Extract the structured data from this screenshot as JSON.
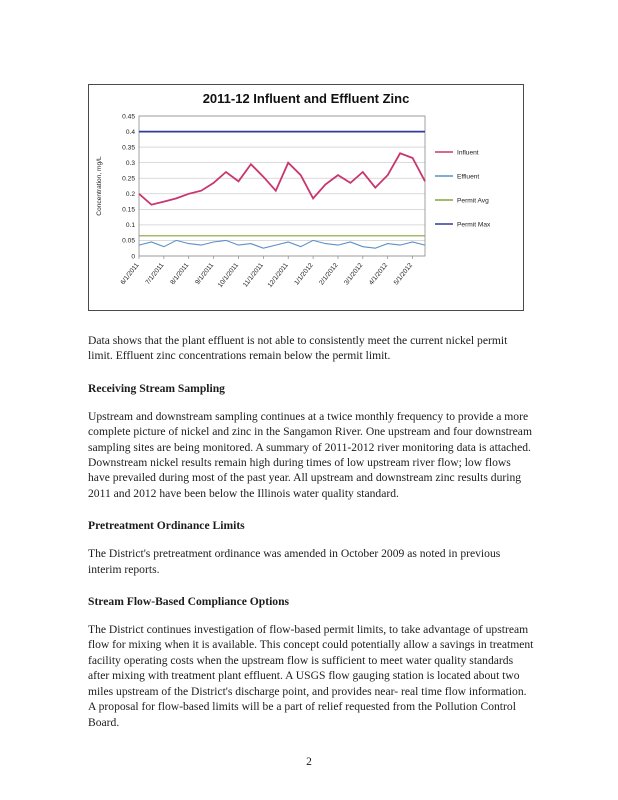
{
  "page_number": "2",
  "chart_data": {
    "type": "line",
    "title": "2011-12 Influent and Effluent Zinc",
    "ylabel": "Concentration, mg/L",
    "xlabel": "",
    "ylim": [
      0,
      0.45
    ],
    "ytick_step": 0.05,
    "grid": true,
    "legend_position": "right",
    "x_tick_labels": [
      "6/1/2011",
      "7/1/2011",
      "8/1/2011",
      "9/1/2011",
      "10/1/2011",
      "11/1/2011",
      "12/1/2011",
      "1/1/2012",
      "2/1/2012",
      "3/1/2012",
      "4/1/2012",
      "5/1/2012"
    ],
    "series": [
      {
        "name": "Influent",
        "color": "#c9366f",
        "values": [
          0.2,
          0.165,
          0.175,
          0.185,
          0.2,
          0.21,
          0.235,
          0.27,
          0.24,
          0.295,
          0.255,
          0.21,
          0.3,
          0.26,
          0.185,
          0.23,
          0.26,
          0.235,
          0.27,
          0.22,
          0.26,
          0.33,
          0.315,
          0.24
        ]
      },
      {
        "name": "Effluent",
        "color": "#5b8fc9",
        "values": [
          0.035,
          0.045,
          0.03,
          0.05,
          0.04,
          0.035,
          0.045,
          0.05,
          0.035,
          0.04,
          0.025,
          0.035,
          0.045,
          0.03,
          0.05,
          0.04,
          0.035,
          0.045,
          0.03,
          0.025,
          0.04,
          0.035,
          0.045,
          0.035
        ]
      },
      {
        "name": "Permit Avg",
        "color": "#86a33d",
        "constant": 0.065
      },
      {
        "name": "Permit Max",
        "color": "#34389a",
        "constant": 0.4
      }
    ]
  },
  "document": {
    "intro": "Data shows that the plant effluent is not able to consistently meet the current nickel permit limit.  Effluent zinc concentrations remain below the permit limit.",
    "sections": [
      {
        "heading": "Receiving Stream Sampling",
        "body": "Upstream and downstream sampling continues at a twice monthly frequency to provide a more complete picture of nickel and zinc in the Sangamon River.  One upstream and four downstream  sampling sites are being monitored.    A summary of 2011-2012 river monitoring data is attached.  Downstream nickel results remain high during times of low upstream river flow; low flows have prevailed during most of the past year.  All upstream and downstream zinc results during 2011 and 2012 have been below the Illinois water quality standard."
      },
      {
        "heading": "Pretreatment Ordinance Limits",
        "body": "The District's pretreatment ordinance was amended in October 2009 as noted in previous interim reports."
      },
      {
        "heading": "Stream Flow-Based Compliance Options",
        "body": "The District continues investigation of flow-based permit limits, to take advantage of upstream flow for mixing when it is available.  This concept could potentially allow a savings in treatment facility operating costs when the upstream flow is sufficient to meet water quality standards after mixing with treatment plant effluent.  A USGS flow gauging station is located about two miles upstream of the District's discharge point, and provides near- real time flow information.  A proposal for flow-based limits will be a part of relief requested from the Pollution Control Board."
      }
    ]
  }
}
